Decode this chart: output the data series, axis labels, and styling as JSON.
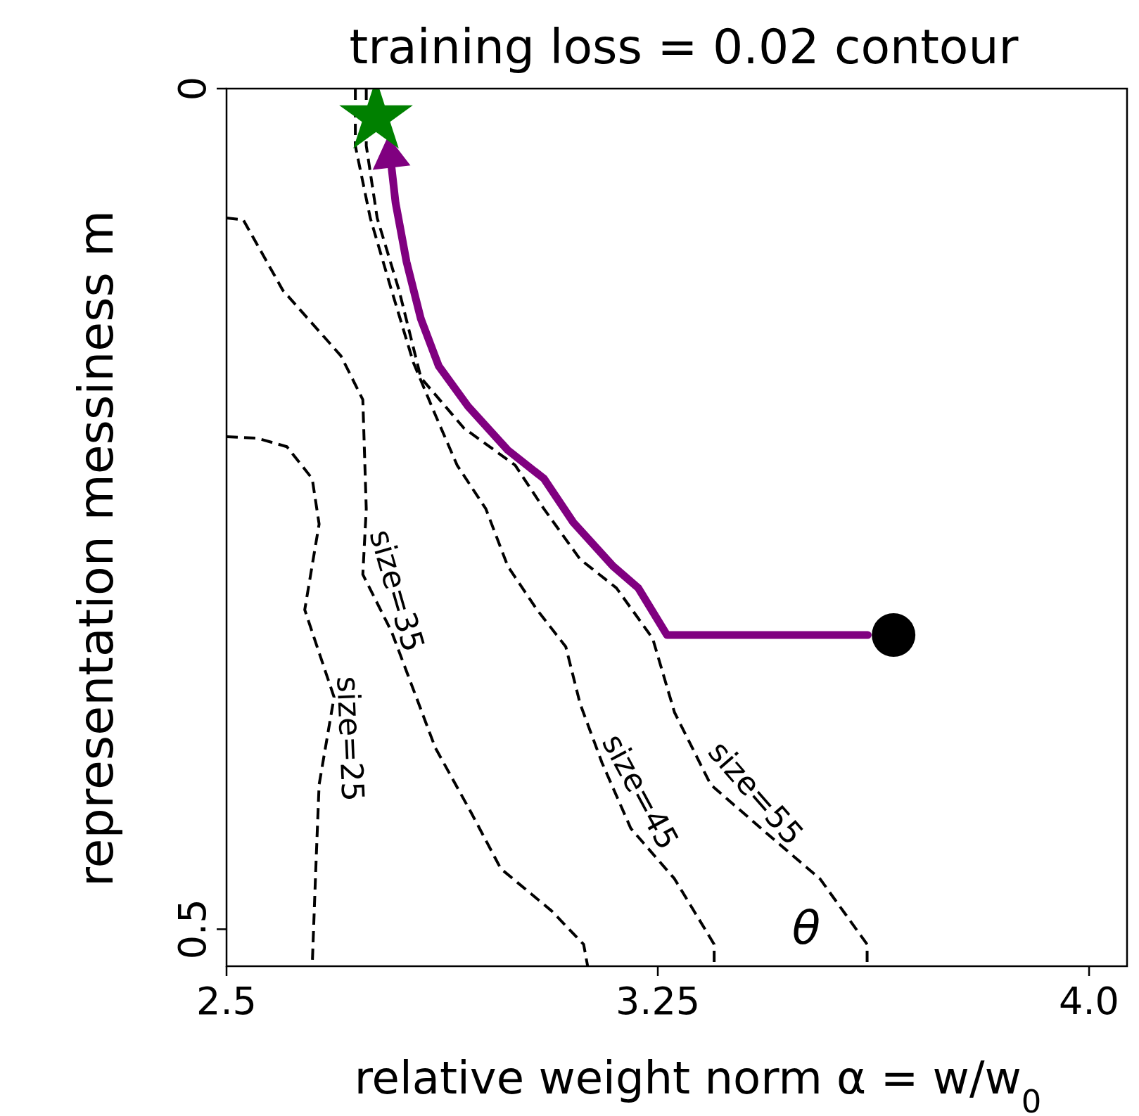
{
  "chart_data": {
    "type": "line",
    "title": "training loss = 0.02 contour",
    "xlabel": "relative weight norm α = w/w$_{0}$",
    "ylabel": "representation messiness m",
    "xlim": [
      2.5,
      4.066
    ],
    "ylim": [
      0.522,
      0
    ],
    "xticks": [
      2.5,
      3.25,
      {
        "value": 4.0,
        "label": "4.0"
      }
    ],
    "yticks": [
      0,
      0.5
    ],
    "grid": false,
    "annotations": [
      "θ"
    ],
    "series": [
      {
        "name": "size=25",
        "color": "#000000",
        "line_style": "dashed",
        "x": [
          2.5,
          2.554,
          2.605,
          2.649,
          2.661,
          2.636,
          2.687,
          2.661,
          2.655,
          2.649
        ],
        "values": [
          0.207,
          0.208,
          0.213,
          0.232,
          0.259,
          0.31,
          0.362,
          0.414,
          0.466,
          0.522
        ]
      },
      {
        "name": "size=35",
        "color": "#000000",
        "line_style": "dashed",
        "x": [
          2.5,
          2.529,
          2.598,
          2.699,
          2.737,
          2.743,
          2.737,
          2.787,
          2.863,
          2.926,
          2.977,
          3.065,
          3.121,
          3.128
        ],
        "values": [
          0.077,
          0.078,
          0.12,
          0.159,
          0.185,
          0.25,
          0.289,
          0.323,
          0.392,
          0.431,
          0.464,
          0.489,
          0.509,
          0.522
        ]
      },
      {
        "name": "size=45",
        "color": "#000000",
        "line_style": "dashed",
        "x": [
          2.724,
          2.724,
          2.75,
          2.787,
          2.825,
          2.863,
          2.901,
          2.951,
          2.989,
          3.04,
          3.09,
          3.115,
          3.153,
          3.203,
          3.279,
          3.348,
          3.348
        ],
        "values": [
          0,
          0.034,
          0.077,
          0.12,
          0.163,
          0.194,
          0.224,
          0.25,
          0.284,
          0.31,
          0.332,
          0.366,
          0.401,
          0.44,
          0.47,
          0.509,
          0.522
        ]
      },
      {
        "name": "size=55",
        "color": "#000000",
        "line_style": "dashed",
        "x": [
          2.743,
          2.743,
          2.762,
          2.8,
          2.838,
          2.913,
          3.002,
          3.052,
          3.115,
          3.178,
          3.241,
          3.279,
          3.342,
          3.443,
          3.532,
          3.614,
          3.614
        ],
        "values": [
          0,
          0.034,
          0.077,
          0.12,
          0.172,
          0.202,
          0.224,
          0.25,
          0.28,
          0.297,
          0.327,
          0.371,
          0.414,
          0.444,
          0.47,
          0.509,
          0.522
        ]
      },
      {
        "type": "line",
        "color": "#800080",
        "line_style": "solid",
        "x": [
          3.615,
          3.266,
          3.216,
          3.172,
          3.103,
          3.052,
          2.989,
          2.92,
          2.869,
          2.838,
          2.813,
          2.794,
          2.787
        ],
        "values": [
          0.325,
          0.325,
          0.297,
          0.284,
          0.258,
          0.232,
          0.215,
          0.189,
          0.165,
          0.137,
          0.103,
          0.068,
          0.047
        ]
      },
      {
        "type": "scatter",
        "color": "#008000",
        "marker": "star",
        "x": [
          2.76
        ],
        "values": [
          0.017
        ]
      },
      {
        "type": "scatter",
        "color": "#000000",
        "marker": "circle",
        "x": [
          3.66
        ],
        "values": [
          0.325
        ]
      }
    ]
  }
}
